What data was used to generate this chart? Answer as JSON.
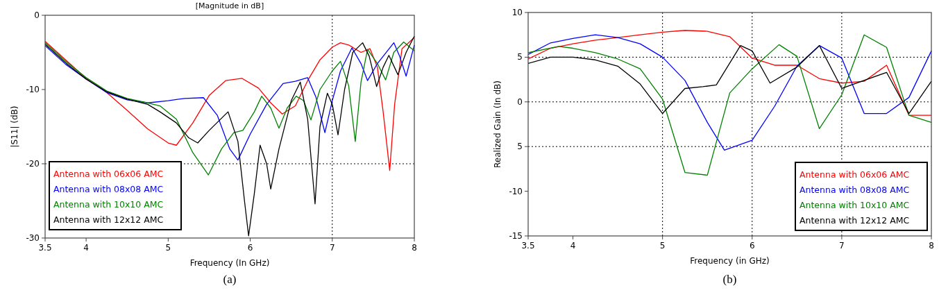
{
  "chart_data": [
    {
      "type": "line",
      "title": "[Magnitude in dB]",
      "xlabel": "Frequency (In GHz)",
      "ylabel": "|S11| (dB)",
      "annotations": [
        "(a)"
      ],
      "xlim": [
        3.5,
        8
      ],
      "xticks": [
        3.5,
        4,
        5,
        6,
        7,
        8
      ],
      "ylim": [
        -30,
        0
      ],
      "yticks": [
        0,
        -10,
        -20,
        -30
      ],
      "legend": "bottom left",
      "line_style": "solid",
      "ref_lines": [
        {
          "axis": "x",
          "value": 7,
          "color": "#000000",
          "line_style": "dotted"
        },
        {
          "axis": "y",
          "value": -20,
          "color": "#000000",
          "line_style": "dotted"
        }
      ],
      "series": [
        {
          "name": "Antenna with 06x06 AMC",
          "color": "#ff0000",
          "x": [
            3.5,
            3.75,
            4,
            4.25,
            4.5,
            4.75,
            5,
            5.1,
            5.3,
            5.5,
            5.7,
            5.9,
            6.1,
            6.25,
            6.39,
            6.55,
            6.7,
            6.85,
            7,
            7.1,
            7.2,
            7.35,
            7.46,
            7.55,
            7.62,
            7.7,
            7.76,
            7.85,
            8
          ],
          "values": [
            -3.5,
            -6.0,
            -8.5,
            -10.4,
            -12.8,
            -15.3,
            -17.2,
            -17.5,
            -14.5,
            -10.8,
            -8.8,
            -8.5,
            -9.8,
            -11.8,
            -13.3,
            -12.2,
            -8.8,
            -6,
            -4.3,
            -3.7,
            -4,
            -5,
            -4.5,
            -7,
            -13,
            -20.9,
            -12,
            -4.5,
            -3
          ]
        },
        {
          "name": "Antenna with 08x08 AMC",
          "color": "#0000ff",
          "x": [
            3.5,
            3.75,
            4,
            4.25,
            4.5,
            4.75,
            5,
            5.2,
            5.43,
            5.6,
            5.75,
            5.85,
            6,
            6.2,
            6.4,
            6.55,
            6.7,
            6.8,
            6.91,
            7,
            7.1,
            7.24,
            7.35,
            7.43,
            7.55,
            7.75,
            7.82,
            7.9,
            8
          ],
          "values": [
            -4.1,
            -6.6,
            -8.6,
            -10.4,
            -11.4,
            -11.8,
            -11.5,
            -11.2,
            -11.1,
            -13.5,
            -18,
            -19.5,
            -16,
            -12,
            -9.2,
            -8.9,
            -8.4,
            -11,
            -15.8,
            -11.5,
            -7.5,
            -4.4,
            -6.5,
            -8.8,
            -6.5,
            -3.7,
            -5.5,
            -8.2,
            -4
          ]
        },
        {
          "name": "Antenna with 10x10 AMC",
          "color": "#008000",
          "x": [
            3.5,
            3.75,
            4,
            4.25,
            4.5,
            4.75,
            4.9,
            5.1,
            5.3,
            5.49,
            5.65,
            5.8,
            5.91,
            6.05,
            6.14,
            6.25,
            6.35,
            6.45,
            6.56,
            6.65,
            6.74,
            6.85,
            7,
            7.1,
            7.2,
            7.28,
            7.35,
            7.43,
            7.55,
            7.65,
            7.75,
            7.87,
            8
          ],
          "values": [
            -3.7,
            -6.2,
            -8.4,
            -10.2,
            -11.2,
            -11.8,
            -12.2,
            -14,
            -18.5,
            -21.5,
            -18,
            -15.8,
            -15.5,
            -13,
            -10.9,
            -12.5,
            -15.2,
            -12.5,
            -10.9,
            -11.5,
            -14.1,
            -10,
            -7.5,
            -6.2,
            -9.5,
            -17,
            -9,
            -4.6,
            -6.5,
            -8.7,
            -5,
            -3.6,
            -4.8
          ]
        },
        {
          "name": "Antenna with 12x12 AMC",
          "color": "#000000",
          "x": [
            3.5,
            3.75,
            4,
            4.25,
            4.5,
            4.75,
            4.9,
            5.1,
            5.25,
            5.36,
            5.5,
            5.73,
            5.85,
            5.93,
            5.98,
            6.05,
            6.12,
            6.2,
            6.25,
            6.35,
            6.5,
            6.61,
            6.7,
            6.79,
            6.85,
            6.94,
            7,
            7.07,
            7.15,
            7.25,
            7.37,
            7.45,
            7.54,
            7.62,
            7.69,
            7.8,
            7.9,
            8
          ],
          "values": [
            -3.9,
            -6.4,
            -8.6,
            -10.3,
            -11.3,
            -12,
            -13,
            -14.5,
            -16.5,
            -17.2,
            -15.5,
            -13,
            -17,
            -25,
            -29.7,
            -24,
            -17.5,
            -20,
            -23.4,
            -18,
            -11.5,
            -9,
            -14,
            -25.4,
            -15,
            -10.5,
            -12,
            -16.1,
            -10,
            -5,
            -3.7,
            -5.5,
            -9.6,
            -7,
            -5.4,
            -8,
            -5,
            -2.8
          ]
        }
      ]
    },
    {
      "type": "line",
      "xlabel": "Frequency (in GHz)",
      "ylabel": "Realized Gain (In dB)",
      "annotations": [
        "(b)"
      ],
      "xlim": [
        3.5,
        8
      ],
      "xticks": [
        3.5,
        4,
        5,
        6,
        7,
        8
      ],
      "ylim": [
        -15,
        10
      ],
      "yticks": [
        10,
        5,
        0,
        {
          "value": -5,
          "label": "5"
        },
        -10,
        -15
      ],
      "legend": "bottom right",
      "line_style": "solid",
      "ref_lines": [
        {
          "axis": "x",
          "value": 5,
          "color": "#000000",
          "line_style": "dotted"
        },
        {
          "axis": "x",
          "value": 6,
          "color": "#000000",
          "line_style": "dotted"
        },
        {
          "axis": "x",
          "value": 7,
          "color": "#000000",
          "line_style": "dotted"
        },
        {
          "axis": "y",
          "value": 5,
          "color": "#000000",
          "line_style": "dotted"
        },
        {
          "axis": "y",
          "value": 0,
          "color": "#000000",
          "line_style": "dotted"
        },
        {
          "axis": "y",
          "value": -5,
          "color": "#000000",
          "line_style": "dotted"
        }
      ],
      "series": [
        {
          "name": "Antenna with 06x06 AMC",
          "color": "#ff0000",
          "x": [
            3.5,
            3.75,
            4,
            4.25,
            4.5,
            4.75,
            5,
            5.25,
            5.5,
            5.75,
            6,
            6.25,
            6.5,
            6.75,
            7,
            7.25,
            7.5,
            7.75,
            8
          ],
          "values": [
            4.8,
            6,
            6.5,
            6.9,
            7.2,
            7.5,
            7.8,
            8,
            7.9,
            7.3,
            4.9,
            4.1,
            4.1,
            2.6,
            2.1,
            2.3,
            4.1,
            -1.5,
            -1.5
          ]
        },
        {
          "name": "Antenna with 08x08 AMC",
          "color": "#0000ff",
          "x": [
            3.5,
            3.75,
            4,
            4.25,
            4.5,
            4.75,
            5,
            5.25,
            5.5,
            5.69,
            6,
            6.25,
            6.5,
            6.75,
            7,
            7.25,
            7.5,
            7.75,
            8
          ],
          "values": [
            5.3,
            6.6,
            7.1,
            7.5,
            7.2,
            6.5,
            5,
            2.4,
            -2.3,
            -5.4,
            -4.3,
            -0.5,
            4,
            6.3,
            4.9,
            -1.3,
            -1.3,
            0.5,
            5.7
          ]
        },
        {
          "name": "Antenna with 10x10 AMC",
          "color": "#008000",
          "x": [
            3.5,
            3.84,
            4,
            4.25,
            4.5,
            4.75,
            5,
            5.25,
            5.5,
            5.75,
            6,
            6.3,
            6.5,
            6.75,
            7,
            7.25,
            7.5,
            7.75,
            8
          ],
          "values": [
            5.5,
            6.2,
            6,
            5.5,
            4.8,
            3.7,
            0.3,
            -7.9,
            -8.2,
            1,
            3.7,
            6.4,
            5.1,
            -3,
            0.8,
            7.5,
            6.1,
            -1.5,
            -2.3
          ]
        },
        {
          "name": "Antenna with 12x12 AMC",
          "color": "#000000",
          "x": [
            3.5,
            3.75,
            4,
            4.25,
            4.5,
            4.75,
            5,
            5.25,
            5.45,
            5.6,
            5.87,
            6,
            6.2,
            6.5,
            6.75,
            7,
            7.5,
            7.75,
            8
          ],
          "values": [
            4.3,
            5,
            5,
            4.7,
            4,
            2,
            -1.3,
            1.5,
            1.7,
            1.9,
            6.3,
            5.7,
            2.1,
            3.9,
            6.3,
            1.5,
            3.3,
            -1.3,
            2.3
          ]
        }
      ]
    }
  ]
}
